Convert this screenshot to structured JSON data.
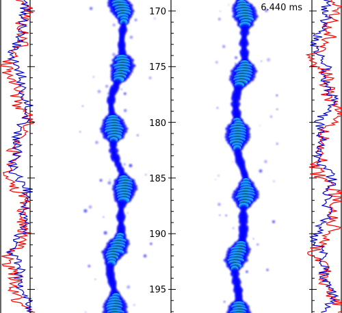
{
  "time_label": "6.440 ms",
  "axis": {
    "ticks": [
      "170",
      "175",
      "180",
      "185",
      "190",
      "195"
    ]
  },
  "colors": {
    "trace_red": "#ff0000",
    "trace_blue": "#0000cc",
    "field_deep": "#0000ff",
    "field_mid": "#22aaee",
    "field_core": "#2a9d7a"
  }
}
